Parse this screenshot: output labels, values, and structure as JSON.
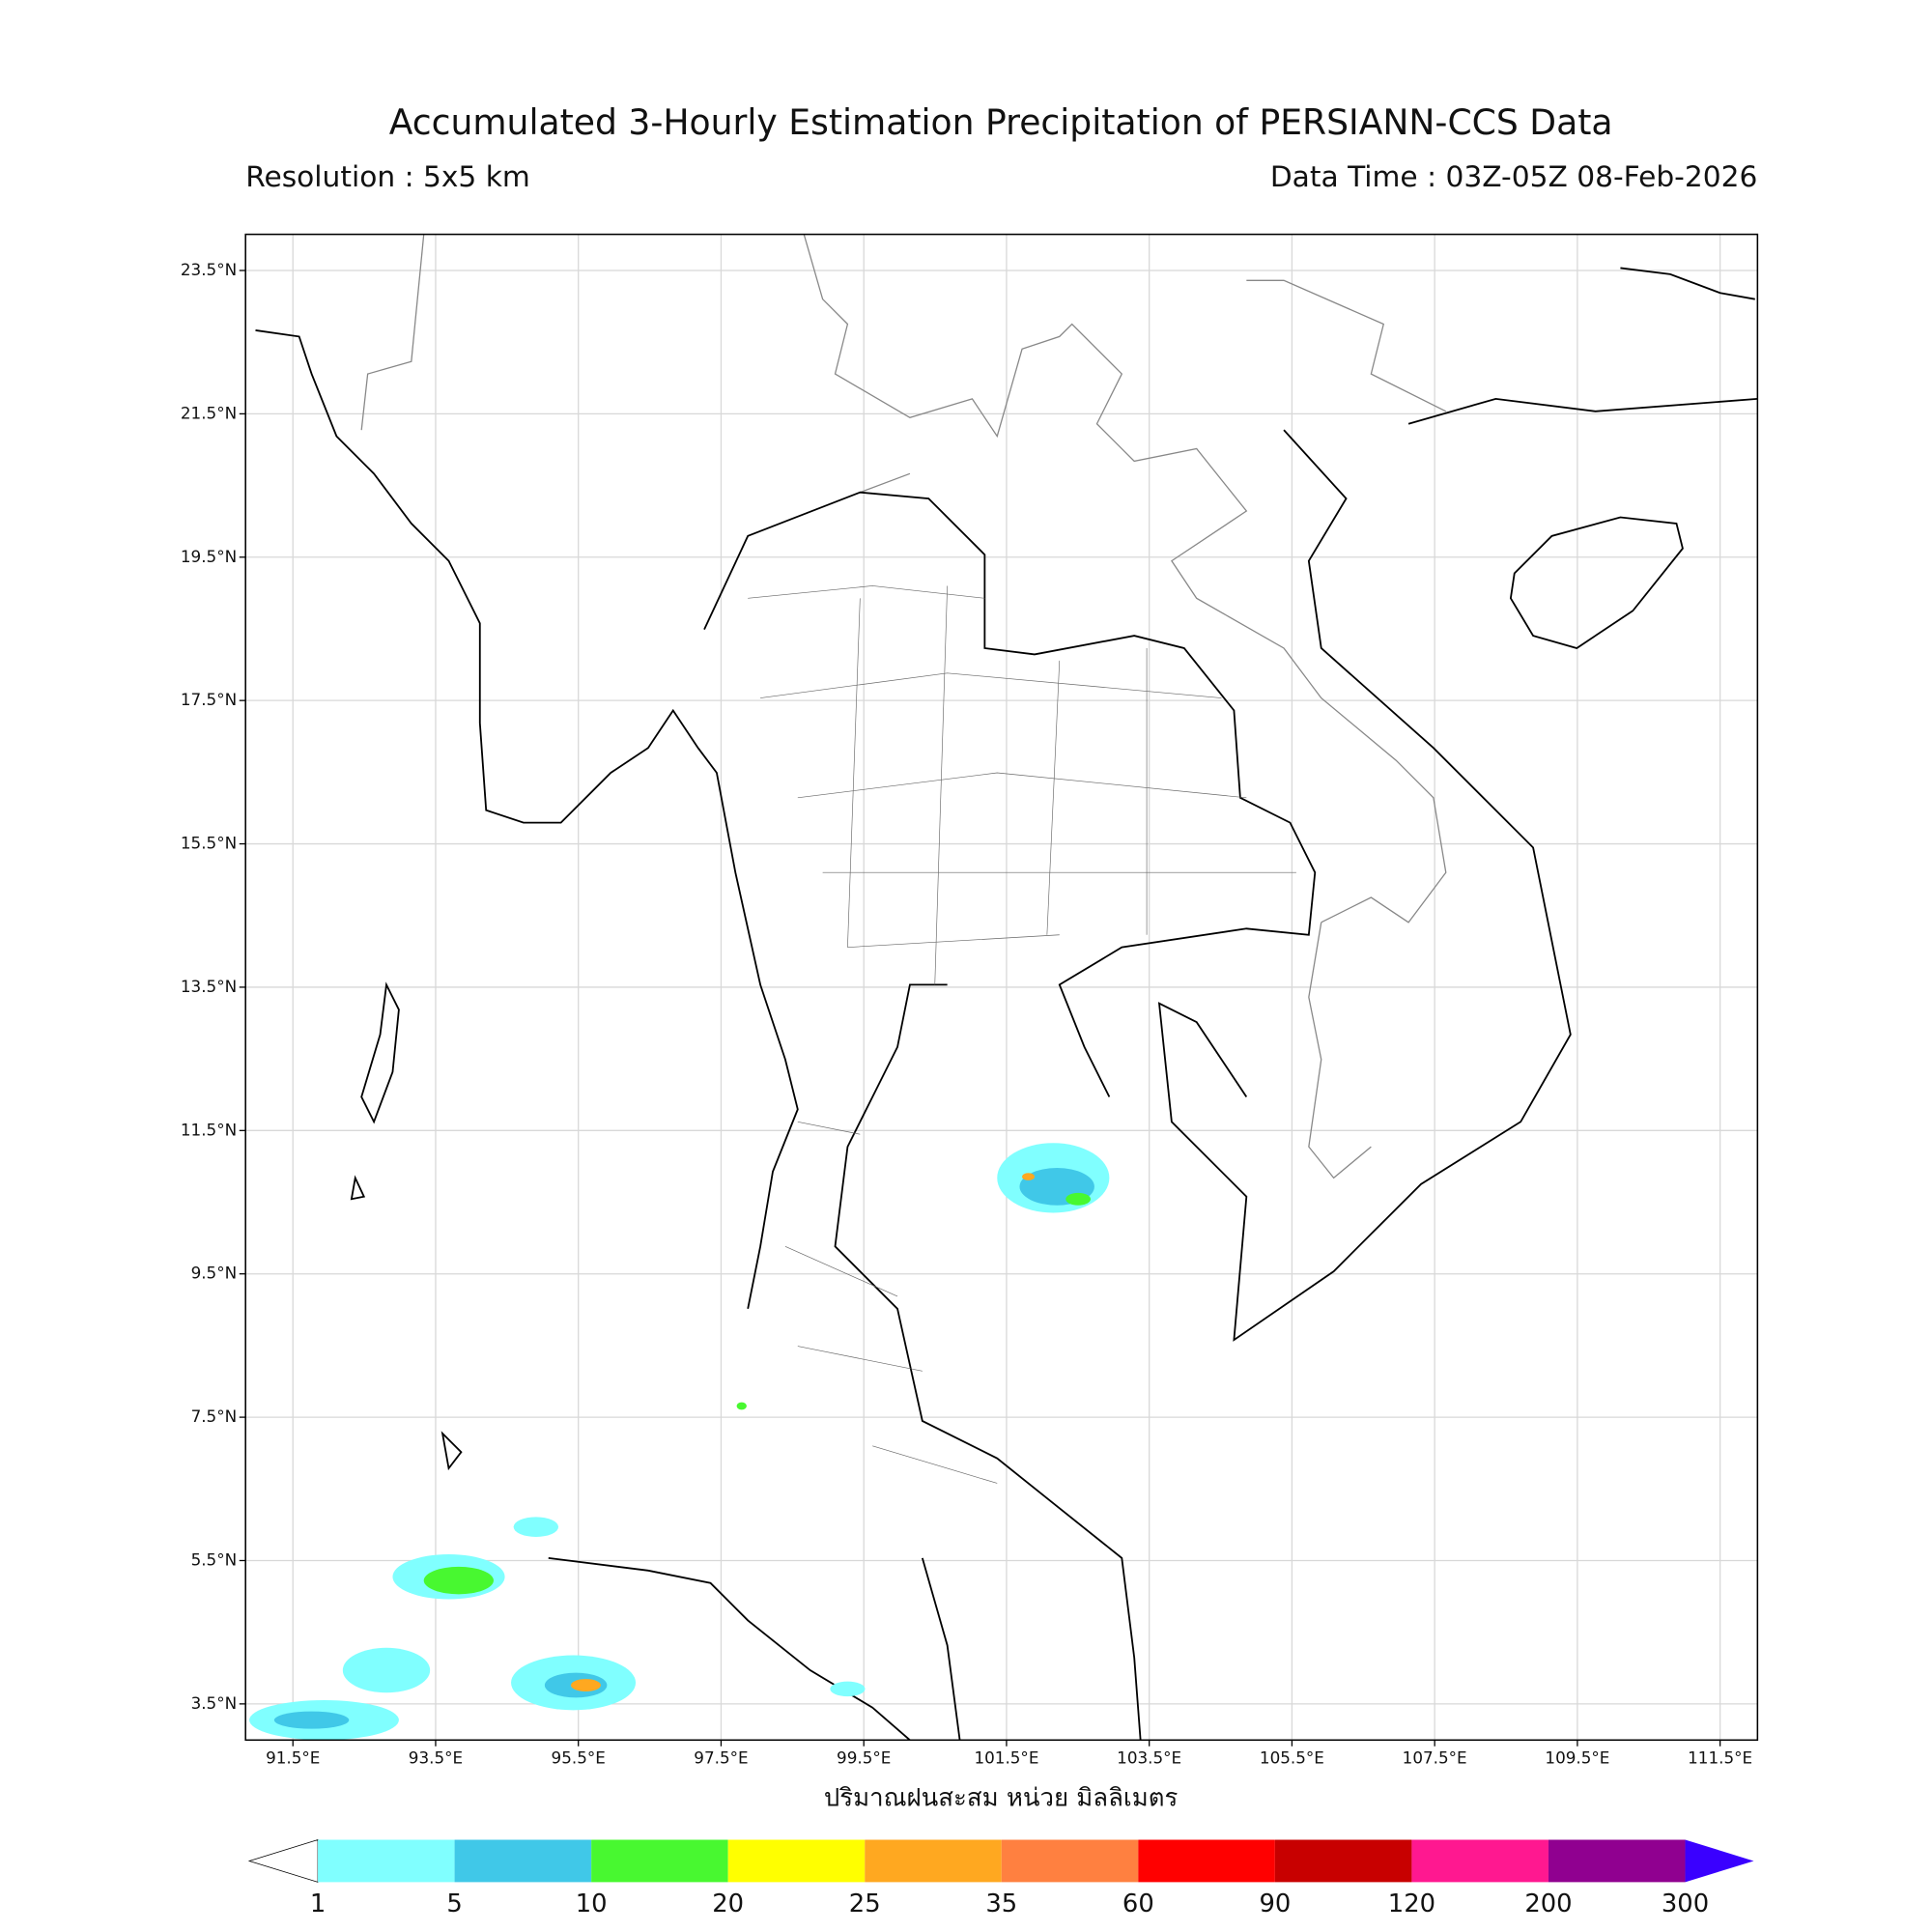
{
  "header": {
    "title": "Accumulated 3-Hourly Estimation Precipitation of PERSIANN-CCS Data",
    "resolution": "Resolution : 5x5 km",
    "data_time": "Data Time : 03Z-05Z 08-Feb-2026"
  },
  "map": {
    "lat_ticks": [
      "23.5°N",
      "21.5°N",
      "19.5°N",
      "17.5°N",
      "15.5°N",
      "13.5°N",
      "11.5°N",
      "9.5°N",
      "7.5°N",
      "5.5°N",
      "3.5°N"
    ],
    "lon_ticks": [
      "91.5°E",
      "93.5°E",
      "95.5°E",
      "97.5°E",
      "99.5°E",
      "101.5°E",
      "103.5°E",
      "105.5°E",
      "107.5°E",
      "109.5°E",
      "111.5°E"
    ],
    "xlabel": "ปริมาณฝนสะสม หน่วย มิลลิเมตร"
  },
  "colorbar": {
    "levels": [
      1,
      5,
      10,
      20,
      25,
      35,
      60,
      90,
      120,
      200,
      300
    ],
    "colors": [
      "#80ffff",
      "#40c8e8",
      "#48f830",
      "#ffff00",
      "#ffa820",
      "#ff8040",
      "#ff0000",
      "#c80000",
      "#ff1890",
      "#900090",
      "#3a00ff"
    ]
  }
}
